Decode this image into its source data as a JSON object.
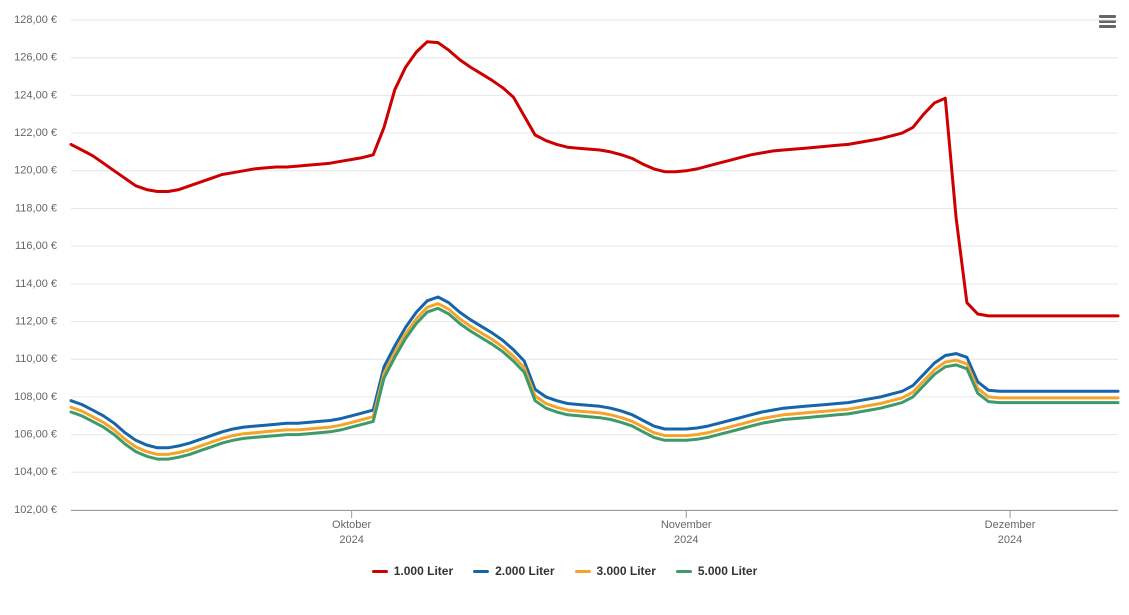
{
  "chart_data": {
    "type": "line",
    "categories": [
      null,
      null,
      null,
      null,
      null,
      null,
      null,
      null,
      null,
      null,
      null,
      null,
      null,
      null,
      null,
      null,
      null,
      null,
      null,
      null,
      null,
      null,
      null,
      null,
      null,
      null,
      "Oktober\n2024",
      null,
      null,
      null,
      null,
      null,
      null,
      null,
      null,
      null,
      null,
      null,
      null,
      null,
      null,
      null,
      null,
      null,
      null,
      null,
      null,
      null,
      null,
      null,
      null,
      null,
      null,
      null,
      null,
      null,
      null,
      "November\n2024",
      null,
      null,
      null,
      null,
      null,
      null,
      null,
      null,
      null,
      null,
      null,
      null,
      null,
      null,
      null,
      null,
      null,
      null,
      null,
      null,
      null,
      null,
      null,
      null,
      null,
      null,
      null,
      null,
      null,
      "Dezember\n2024",
      null,
      null,
      null,
      null,
      null,
      null,
      null,
      null,
      null,
      null
    ],
    "series": [
      {
        "name": "1.000 Liter",
        "color": "#cc0000",
        "values": [
          121.4,
          121.1,
          120.8,
          120.4,
          120.0,
          119.6,
          119.2,
          119.0,
          118.9,
          118.9,
          119.0,
          119.2,
          119.4,
          119.6,
          119.8,
          119.9,
          120.0,
          120.1,
          120.15,
          120.2,
          120.2,
          120.25,
          120.3,
          120.35,
          120.4,
          120.5,
          120.6,
          120.7,
          120.85,
          122.3,
          124.3,
          125.5,
          126.3,
          126.85,
          126.8,
          126.4,
          125.9,
          125.5,
          125.15,
          124.8,
          124.4,
          123.9,
          122.9,
          121.9,
          121.6,
          121.4,
          121.25,
          121.2,
          121.15,
          121.1,
          121.0,
          120.85,
          120.65,
          120.35,
          120.1,
          119.95,
          119.95,
          120.0,
          120.1,
          120.25,
          120.4,
          120.55,
          120.7,
          120.85,
          120.95,
          121.05,
          121.1,
          121.15,
          121.2,
          121.25,
          121.3,
          121.35,
          121.4,
          121.5,
          121.6,
          121.7,
          121.85,
          122.0,
          122.3,
          123.0,
          123.6,
          123.85,
          117.5,
          113.0,
          112.4,
          112.3,
          112.3,
          112.3,
          112.3,
          112.3,
          112.3,
          112.3,
          112.3,
          112.3,
          112.3,
          112.3,
          112.3,
          112.3
        ]
      },
      {
        "name": "2.000 Liter",
        "color": "#1565a8",
        "values": [
          107.8,
          107.6,
          107.3,
          107.0,
          106.6,
          106.1,
          105.7,
          105.45,
          105.3,
          105.3,
          105.4,
          105.55,
          105.75,
          105.95,
          106.15,
          106.3,
          106.4,
          106.45,
          106.5,
          106.55,
          106.6,
          106.6,
          106.65,
          106.7,
          106.75,
          106.85,
          107.0,
          107.15,
          107.3,
          109.6,
          110.7,
          111.7,
          112.5,
          113.1,
          113.3,
          113.0,
          112.5,
          112.1,
          111.75,
          111.4,
          111.0,
          110.5,
          109.9,
          108.4,
          108.0,
          107.8,
          107.65,
          107.6,
          107.55,
          107.5,
          107.4,
          107.25,
          107.05,
          106.75,
          106.45,
          106.3,
          106.3,
          106.3,
          106.35,
          106.45,
          106.6,
          106.75,
          106.9,
          107.05,
          107.2,
          107.3,
          107.4,
          107.45,
          107.5,
          107.55,
          107.6,
          107.65,
          107.7,
          107.8,
          107.9,
          108.0,
          108.15,
          108.3,
          108.6,
          109.2,
          109.8,
          110.2,
          110.3,
          110.1,
          108.8,
          108.35,
          108.3,
          108.3,
          108.3,
          108.3,
          108.3,
          108.3,
          108.3,
          108.3,
          108.3,
          108.3,
          108.3,
          108.3
        ]
      },
      {
        "name": "3.000 Liter",
        "color": "#f5a42a",
        "values": [
          107.45,
          107.25,
          106.95,
          106.65,
          106.25,
          105.75,
          105.35,
          105.1,
          104.95,
          104.95,
          105.05,
          105.2,
          105.4,
          105.6,
          105.8,
          105.95,
          106.05,
          106.1,
          106.15,
          106.2,
          106.25,
          106.25,
          106.3,
          106.35,
          106.4,
          106.5,
          106.65,
          106.8,
          106.95,
          109.25,
          110.35,
          111.35,
          112.15,
          112.75,
          112.95,
          112.65,
          112.15,
          111.75,
          111.4,
          111.05,
          110.65,
          110.15,
          109.55,
          108.05,
          107.65,
          107.45,
          107.3,
          107.25,
          107.2,
          107.15,
          107.05,
          106.9,
          106.7,
          106.4,
          106.1,
          105.95,
          105.95,
          105.95,
          106.0,
          106.1,
          106.25,
          106.4,
          106.55,
          106.7,
          106.85,
          106.95,
          107.05,
          107.1,
          107.15,
          107.2,
          107.25,
          107.3,
          107.35,
          107.45,
          107.55,
          107.65,
          107.8,
          107.95,
          108.25,
          108.85,
          109.45,
          109.85,
          109.95,
          109.75,
          108.45,
          108.0,
          107.95,
          107.95,
          107.95,
          107.95,
          107.95,
          107.95,
          107.95,
          107.95,
          107.95,
          107.95,
          107.95,
          107.95
        ]
      },
      {
        "name": "5.000 Liter",
        "color": "#3d9a6b",
        "values": [
          107.2,
          107.0,
          106.7,
          106.4,
          106.0,
          105.5,
          105.1,
          104.85,
          104.7,
          104.7,
          104.8,
          104.95,
          105.15,
          105.35,
          105.55,
          105.7,
          105.8,
          105.85,
          105.9,
          105.95,
          106.0,
          106.0,
          106.05,
          106.1,
          106.15,
          106.25,
          106.4,
          106.55,
          106.7,
          109.0,
          110.1,
          111.1,
          111.9,
          112.5,
          112.7,
          112.4,
          111.9,
          111.5,
          111.15,
          110.8,
          110.4,
          109.9,
          109.3,
          107.8,
          107.4,
          107.2,
          107.05,
          107.0,
          106.95,
          106.9,
          106.8,
          106.65,
          106.45,
          106.15,
          105.85,
          105.7,
          105.7,
          105.7,
          105.75,
          105.85,
          106.0,
          106.15,
          106.3,
          106.45,
          106.6,
          106.7,
          106.8,
          106.85,
          106.9,
          106.95,
          107.0,
          107.05,
          107.1,
          107.2,
          107.3,
          107.4,
          107.55,
          107.7,
          108.0,
          108.6,
          109.2,
          109.6,
          109.7,
          109.5,
          108.2,
          107.75,
          107.7,
          107.7,
          107.7,
          107.7,
          107.7,
          107.7,
          107.7,
          107.7,
          107.7,
          107.7,
          107.7,
          107.7
        ]
      }
    ],
    "ylim": [
      102,
      128
    ],
    "yticks": [
      {
        "value": 102,
        "label": "102,00 €"
      },
      {
        "value": 104,
        "label": "104,00 €"
      },
      {
        "value": 106,
        "label": "106,00 €"
      },
      {
        "value": 108,
        "label": "108,00 €"
      },
      {
        "value": 110,
        "label": "110,00 €"
      },
      {
        "value": 112,
        "label": "112,00 €"
      },
      {
        "value": 114,
        "label": "114,00 €"
      },
      {
        "value": 116,
        "label": "116,00 €"
      },
      {
        "value": 118,
        "label": "118,00 €"
      },
      {
        "value": 120,
        "label": "120,00 €"
      },
      {
        "value": 122,
        "label": "122,00 €"
      },
      {
        "value": 124,
        "label": "124,00 €"
      },
      {
        "value": 126,
        "label": "126,00 €"
      },
      {
        "value": 128,
        "label": "128,00 €"
      }
    ],
    "grid": true,
    "legend": "bottom"
  }
}
